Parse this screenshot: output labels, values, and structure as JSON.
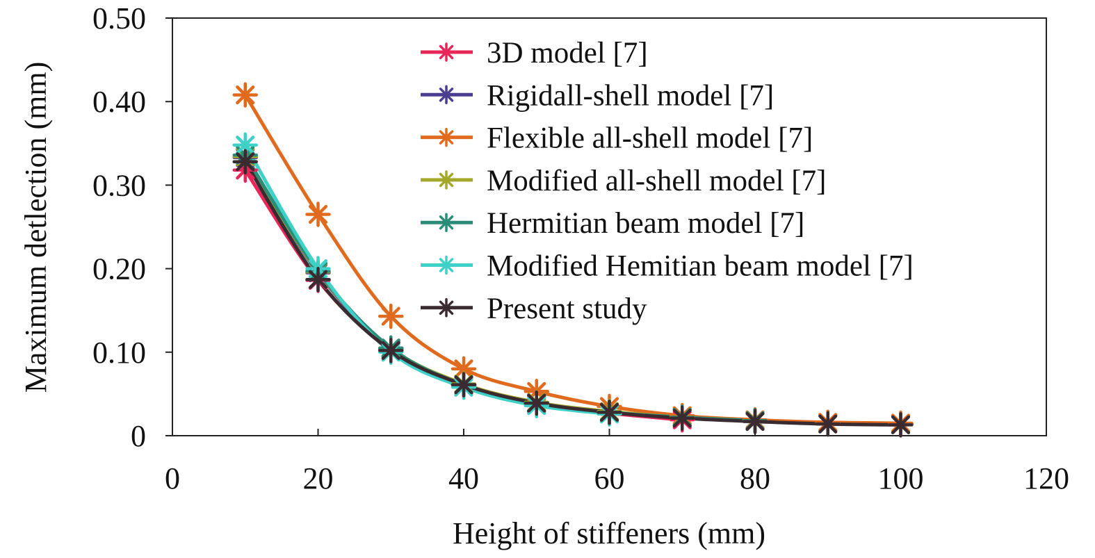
{
  "chart_data": {
    "type": "line",
    "title": "",
    "xlabel": "Height of stiffeners (mm)",
    "ylabel": "Maximum detlection (mm)",
    "xlim": [
      0,
      120
    ],
    "ylim": [
      0,
      0.5
    ],
    "x_ticks": [
      "0",
      "20",
      "40",
      "60",
      "80",
      "100",
      "120"
    ],
    "y_ticks": [
      "0",
      "0.10",
      "0.20",
      "0.30",
      "0.40",
      "0.50"
    ],
    "grid": false,
    "legend_position": "top-right",
    "marker": "asterisk",
    "series": [
      {
        "name": "3D model [7]",
        "color": "#e8265a",
        "x": [
          10,
          20,
          30,
          40,
          50,
          60,
          70
        ],
        "y": [
          0.318,
          0.186,
          0.102,
          0.06,
          0.038,
          0.027,
          0.019
        ]
      },
      {
        "name": "Rigidall-shell model [7]",
        "color": "#4b3d8f",
        "x": [
          10,
          20,
          30,
          40,
          50,
          60,
          70,
          80,
          90,
          100
        ],
        "y": [
          0.333,
          0.195,
          0.104,
          0.061,
          0.039,
          0.028,
          0.022,
          0.018,
          0.015,
          0.014
        ]
      },
      {
        "name": "Flexible all-shell model [7]",
        "color": "#e06b1f",
        "x": [
          10,
          20,
          30,
          40,
          50,
          60,
          70,
          80,
          90,
          100
        ],
        "y": [
          0.408,
          0.265,
          0.143,
          0.08,
          0.053,
          0.035,
          0.024,
          0.019,
          0.016,
          0.015
        ]
      },
      {
        "name": "Modified all-shell model [7]",
        "color": "#a3a82a",
        "x": [
          10,
          20,
          30,
          40,
          50,
          60,
          70,
          80
        ],
        "y": [
          0.334,
          0.196,
          0.105,
          0.062,
          0.04,
          0.029,
          0.022,
          0.018
        ]
      },
      {
        "name": "Hermitian beam model [7]",
        "color": "#2b8c78",
        "x": [
          10,
          20,
          30,
          40,
          50,
          60,
          70,
          80
        ],
        "y": [
          0.336,
          0.197,
          0.105,
          0.061,
          0.039,
          0.028,
          0.022,
          0.018
        ]
      },
      {
        "name": "Modified Hemitian beam model [7]",
        "color": "#3fd0c8",
        "x": [
          10,
          20,
          30,
          40,
          50,
          60
        ],
        "y": [
          0.348,
          0.2,
          0.1,
          0.058,
          0.036,
          0.026
        ]
      },
      {
        "name": "Present study",
        "color": "#3a2b30",
        "x": [
          10,
          20,
          30,
          40,
          50,
          60,
          70,
          80,
          90,
          100
        ],
        "y": [
          0.328,
          0.187,
          0.102,
          0.061,
          0.039,
          0.028,
          0.021,
          0.017,
          0.014,
          0.013
        ]
      }
    ]
  }
}
